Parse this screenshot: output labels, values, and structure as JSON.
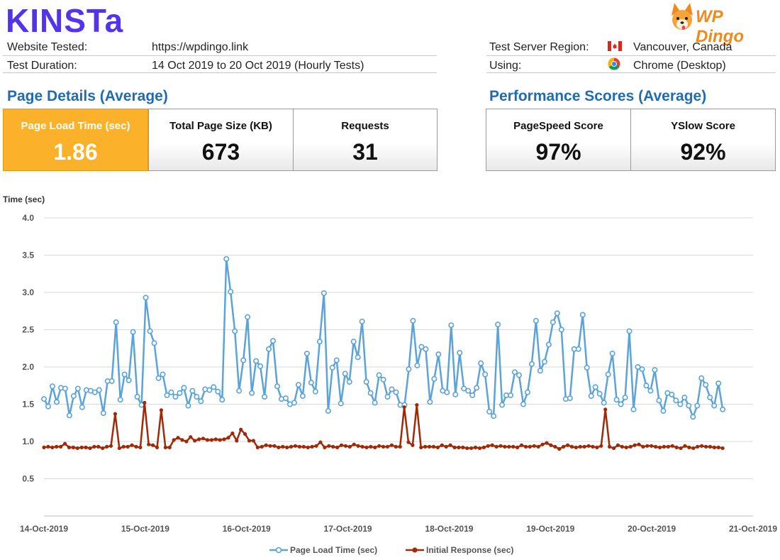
{
  "brand": {
    "kinsta": "KINSTa",
    "wpdingo": "WP Dingo"
  },
  "meta": {
    "website_label": "Website Tested:",
    "website_value": "https://wpdingo.link",
    "duration_label": "Test Duration:",
    "duration_value": "14 Oct 2019 to 20 Oct 2019 (Hourly Tests)",
    "region_label": "Test Server Region:",
    "region_value": "Vancouver, Canada",
    "using_label": "Using:",
    "using_value": "Chrome (Desktop)"
  },
  "page_details": {
    "title": "Page Details (Average)",
    "boxes": [
      {
        "label": "Page Load Time (sec)",
        "value": "1.86"
      },
      {
        "label": "Total Page Size (KB)",
        "value": "673"
      },
      {
        "label": "Requests",
        "value": "31"
      }
    ]
  },
  "performance": {
    "title": "Performance Scores (Average)",
    "boxes": [
      {
        "label": "PageSpeed Score",
        "value": "97%"
      },
      {
        "label": "YSlow Score",
        "value": "92%"
      }
    ]
  },
  "colors": {
    "page_load": "#5ba3d9",
    "initial_response": "#a02a08",
    "highlight": "#fbb12a",
    "title_blue": "#1f6cb0",
    "brand": "#5333ed"
  },
  "chart_data": {
    "type": "line",
    "ylabel": "Time (sec)",
    "ylim": [
      0,
      4.0
    ],
    "yticks": [
      "4.0",
      "3.5",
      "3.0",
      "2.5",
      "2.0",
      "1.5",
      "1.0",
      "0.5"
    ],
    "ytick_values": [
      4.0,
      3.5,
      3.0,
      2.5,
      2.0,
      1.5,
      1.0,
      0.5
    ],
    "xticks": [
      "14-Oct-2019",
      "15-Oct-2019",
      "16-Oct-2019",
      "17-Oct-2019",
      "18-Oct-2019",
      "19-Oct-2019",
      "20-Oct-2019",
      "21-Oct-2019"
    ],
    "x_unit": "days from 14-Oct-2019",
    "grid": "horizontal",
    "legend": "bottom",
    "series": [
      {
        "name": "Page Load Time (sec)",
        "values": [
          1.57,
          1.47,
          1.74,
          1.53,
          1.72,
          1.71,
          1.35,
          1.61,
          1.71,
          1.46,
          1.69,
          1.68,
          1.66,
          1.69,
          1.38,
          1.81,
          1.81,
          2.6,
          1.56,
          1.9,
          1.82,
          2.47,
          1.6,
          1.49,
          2.93,
          2.48,
          2.32,
          1.85,
          1.9,
          1.62,
          1.66,
          1.6,
          1.65,
          1.72,
          1.48,
          1.68,
          1.6,
          1.54,
          1.7,
          1.69,
          1.73,
          1.67,
          1.56,
          3.45,
          3.01,
          2.48,
          1.68,
          2.09,
          2.67,
          1.65,
          2.08,
          2.01,
          1.6,
          2.24,
          2.35,
          1.74,
          1.57,
          1.58,
          1.5,
          1.52,
          1.76,
          1.61,
          2.18,
          1.79,
          1.67,
          2.34,
          2.99,
          1.41,
          1.99,
          2.09,
          1.51,
          1.91,
          1.8,
          2.34,
          2.13,
          2.61,
          1.8,
          1.65,
          1.52,
          1.89,
          1.83,
          1.6,
          1.7,
          1.66,
          1.49,
          1.49,
          1.97,
          2.62,
          2.02,
          2.27,
          2.24,
          1.53,
          1.84,
          2.17,
          1.68,
          1.66,
          2.56,
          1.63,
          2.19,
          1.71,
          1.68,
          1.62,
          1.72,
          2.05,
          1.9,
          1.4,
          1.34,
          2.57,
          1.49,
          1.62,
          1.62,
          1.93,
          1.89,
          1.5,
          1.66,
          2.04,
          2.62,
          1.95,
          2.07,
          2.3,
          2.6,
          2.72,
          2.5,
          1.57,
          1.58,
          2.24,
          2.24,
          2.7,
          1.99,
          1.61,
          1.73,
          1.64,
          1.52,
          1.9,
          2.18,
          1.56,
          1.5,
          1.59,
          2.48,
          1.43,
          2.0,
          1.97,
          1.75,
          1.68,
          1.96,
          1.55,
          1.41,
          1.65,
          1.63,
          1.55,
          1.5,
          1.59,
          1.48,
          1.33,
          1.48,
          1.85,
          1.76,
          1.59,
          1.48,
          1.78,
          1.43
        ]
      },
      {
        "name": "Initial Response (sec)",
        "values": [
          0.92,
          0.93,
          0.92,
          0.93,
          0.93,
          0.97,
          0.92,
          0.92,
          0.91,
          0.92,
          0.92,
          0.91,
          0.93,
          0.93,
          0.91,
          0.93,
          0.94,
          1.37,
          0.91,
          0.93,
          0.93,
          0.95,
          0.93,
          0.92,
          1.52,
          0.96,
          0.95,
          0.92,
          1.42,
          0.92,
          0.92,
          1.02,
          1.05,
          1.02,
          1.0,
          1.06,
          1.01,
          1.03,
          1.04,
          1.02,
          1.02,
          1.03,
          1.02,
          1.03,
          1.05,
          1.11,
          1.01,
          1.16,
          1.1,
          1.01,
          1.01,
          0.92,
          0.93,
          0.95,
          0.94,
          0.94,
          0.92,
          0.93,
          0.92,
          0.93,
          0.94,
          0.93,
          0.93,
          0.92,
          0.93,
          0.94,
          0.99,
          0.92,
          0.94,
          0.93,
          0.92,
          0.95,
          0.94,
          0.93,
          0.96,
          0.94,
          0.93,
          0.92,
          0.93,
          0.92,
          0.94,
          0.93,
          0.93,
          0.95,
          0.93,
          0.93,
          1.46,
          0.99,
          0.95,
          1.49,
          0.92,
          0.93,
          0.93,
          0.93,
          0.92,
          0.95,
          0.93,
          0.95,
          0.92,
          0.92,
          0.92,
          0.91,
          0.91,
          0.92,
          0.91,
          0.92,
          0.94,
          0.95,
          0.93,
          0.94,
          0.93,
          0.93,
          0.93,
          0.92,
          0.95,
          0.93,
          0.93,
          0.94,
          0.93,
          0.96,
          0.98,
          0.95,
          0.93,
          0.9,
          0.93,
          0.95,
          0.93,
          0.92,
          0.93,
          0.93,
          0.94,
          0.93,
          0.92,
          0.94,
          1.43,
          0.93,
          0.91,
          0.95,
          0.93,
          0.92,
          0.93,
          0.95,
          0.96,
          0.93,
          0.94,
          0.94,
          0.93,
          0.92,
          0.93,
          0.93,
          0.94,
          0.92,
          0.91,
          0.94,
          0.92,
          0.91,
          0.93,
          0.94,
          0.93,
          0.93,
          0.92,
          0.92,
          0.91
        ]
      }
    ]
  }
}
